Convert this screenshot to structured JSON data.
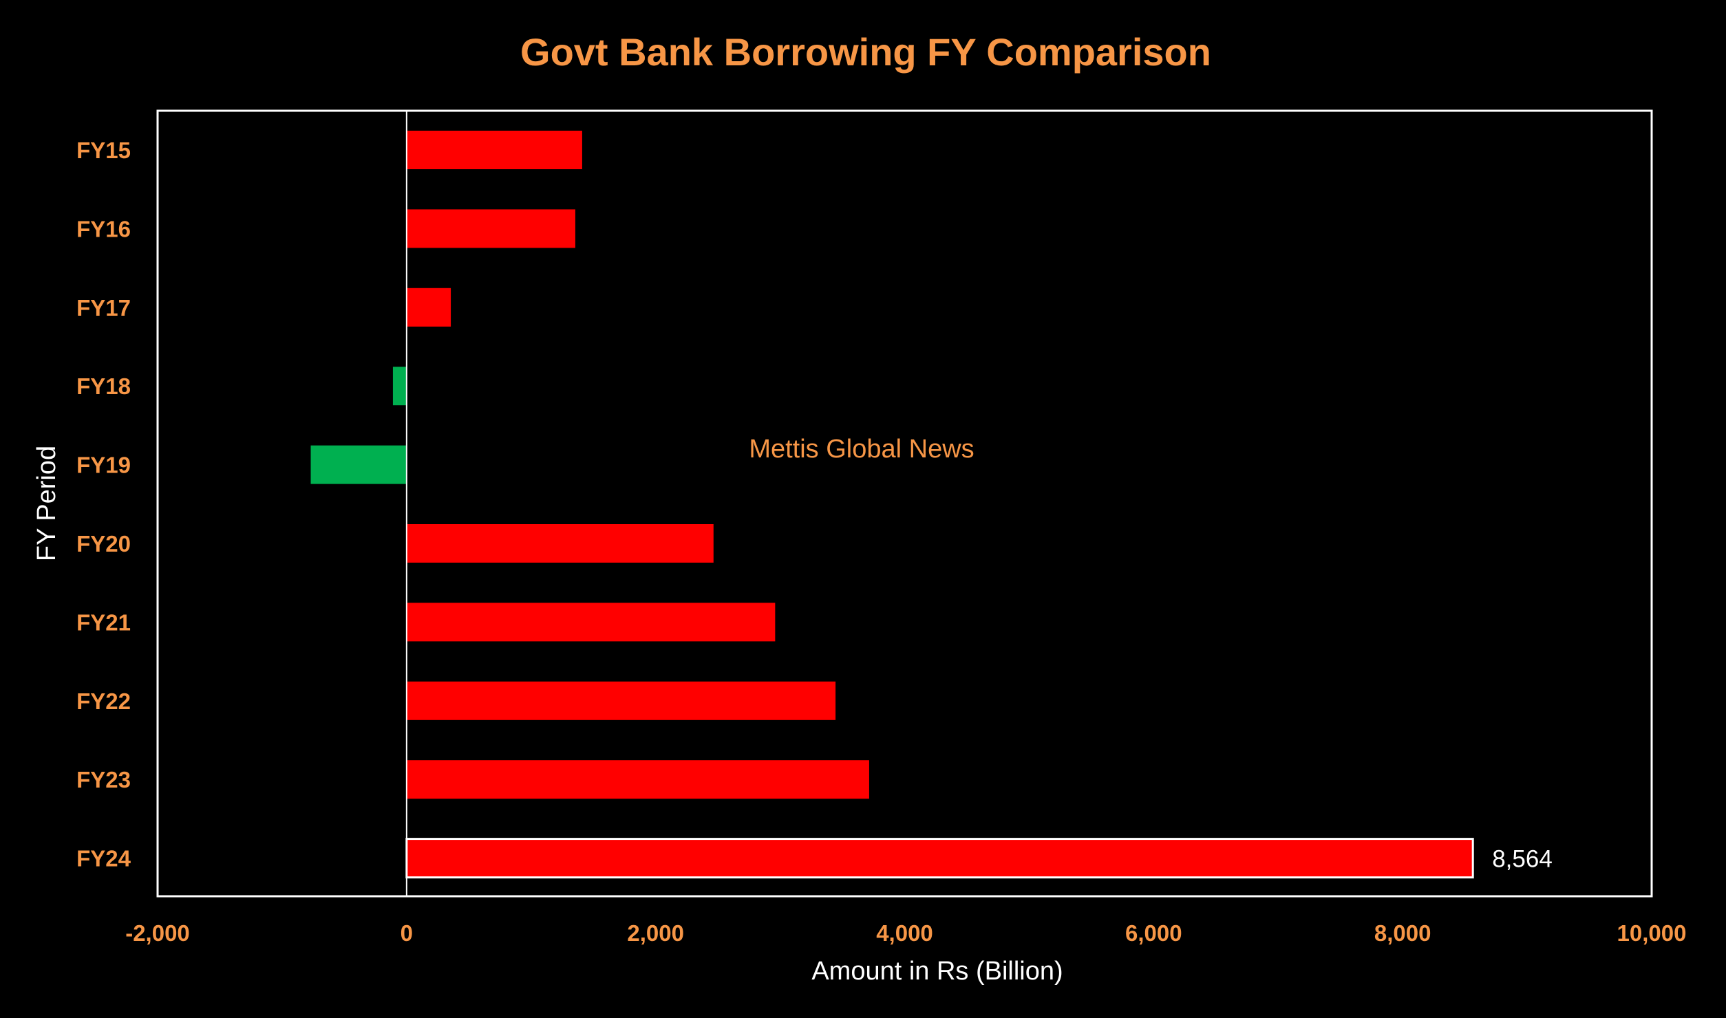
{
  "colors": {
    "background": "#000000",
    "title": "#F79646",
    "tick_label": "#F79646",
    "axis_label": "#FFFFFF",
    "annotation": "#F79646",
    "positive_bar": "#FF0000",
    "negative_bar": "#00B050",
    "highlight_outline": "#FFFFFF",
    "frame": "#FFFFFF",
    "data_label": "#FFFFFF"
  },
  "chart_data": {
    "type": "bar",
    "orientation": "horizontal",
    "title": "Govt Bank Borrowing FY Comparison",
    "xlabel": "Amount in Rs (Billion)",
    "ylabel": "FY Period",
    "categories": [
      "FY15",
      "FY16",
      "FY17",
      "FY18",
      "FY19",
      "FY20",
      "FY21",
      "FY22",
      "FY23",
      "FY24"
    ],
    "values": [
      1410,
      1355,
      355,
      -110,
      -770,
      2465,
      2960,
      3445,
      3715,
      8564
    ],
    "xlim": [
      -2000,
      10000
    ],
    "x_ticks": [
      -2000,
      0,
      2000,
      4000,
      6000,
      8000,
      10000
    ],
    "x_tick_labels": [
      "-2,000",
      "0",
      "2,000",
      "4,000",
      "6,000",
      "8,000",
      "10,000"
    ],
    "grid": false,
    "legend": "none",
    "data_labels": [
      {
        "category": "FY24",
        "text": "8,564"
      }
    ],
    "highlighted_category": "FY24",
    "annotation": "Mettis Global News"
  }
}
